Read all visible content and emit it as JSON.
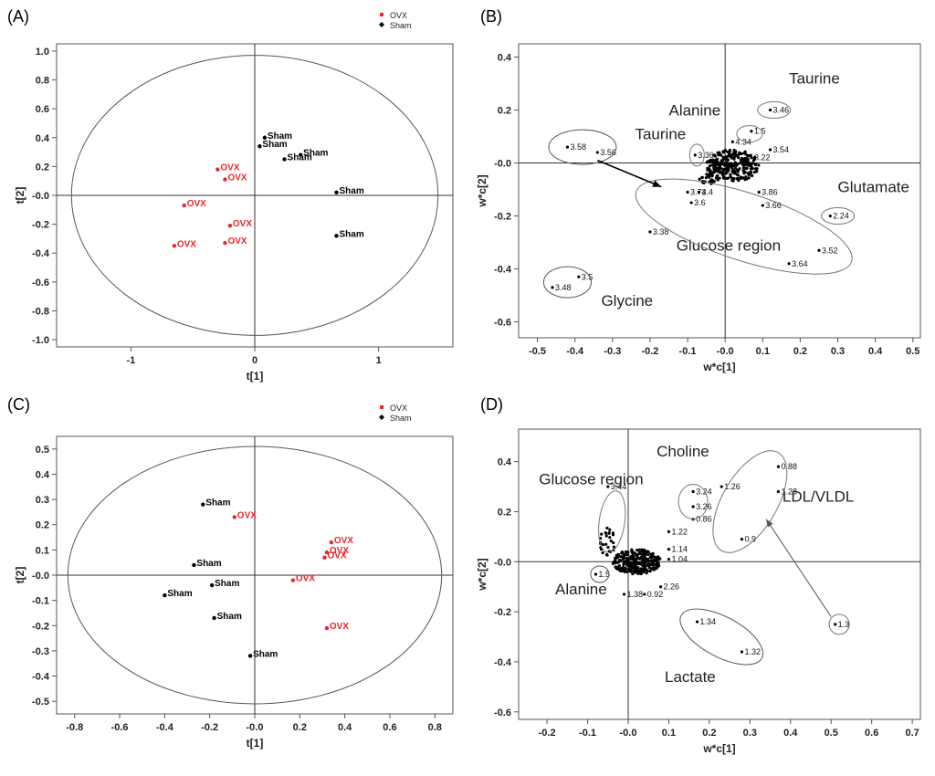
{
  "chart_data": [
    {
      "id": "A",
      "type": "scatter",
      "panel_label": "(A)",
      "xlabel": "t[1]",
      "ylabel": "t[2]",
      "xlim": [
        -1.6,
        1.6
      ],
      "ylim": [
        -1.05,
        1.05
      ],
      "xticks": [
        -1,
        0,
        1
      ],
      "yticks": [
        -1.0,
        -0.8,
        -0.6,
        -0.4,
        -0.2,
        0.0,
        0.2,
        0.4,
        0.6,
        0.8,
        1.0
      ],
      "ytick_labels": [
        "-1.0",
        "-0.8",
        "-0.6",
        "-0.4",
        "-0.2",
        "-0.0",
        "0.2",
        "0.4",
        "0.6",
        "0.8",
        "1.0"
      ],
      "ellipse": {
        "rx": 1.48,
        "ry": 0.97
      },
      "legend": [
        {
          "label": "OVX",
          "color": "#e8262b",
          "marker": "square"
        },
        {
          "label": "Sham",
          "color": "#000000",
          "marker": "diamond"
        }
      ],
      "series": [
        {
          "name": "OVX",
          "color": "#e8262b",
          "points": [
            {
              "x": -0.3,
              "y": 0.18,
              "label": "OVX"
            },
            {
              "x": -0.24,
              "y": 0.11,
              "label": "OVX"
            },
            {
              "x": -0.57,
              "y": -0.07,
              "label": "OVX"
            },
            {
              "x": -0.2,
              "y": -0.21,
              "label": "OVX"
            },
            {
              "x": -0.24,
              "y": -0.33,
              "label": "OVX"
            },
            {
              "x": -0.65,
              "y": -0.35,
              "label": "OVX"
            }
          ]
        },
        {
          "name": "Sham",
          "color": "#000000",
          "points": [
            {
              "x": 0.08,
              "y": 0.4,
              "label": "Sham"
            },
            {
              "x": 0.04,
              "y": 0.34,
              "label": "Sham"
            },
            {
              "x": 0.37,
              "y": 0.28,
              "label": "Sham"
            },
            {
              "x": 0.24,
              "y": 0.25,
              "label": "Sham"
            },
            {
              "x": 0.66,
              "y": 0.02,
              "label": "Sham"
            },
            {
              "x": 0.66,
              "y": -0.28,
              "label": "Sham"
            }
          ]
        }
      ]
    },
    {
      "id": "B",
      "type": "scatter",
      "panel_label": "(B)",
      "xlabel": "w*c[1]",
      "ylabel": "w*c[2]",
      "xlim": [
        -0.55,
        0.52
      ],
      "ylim": [
        -0.66,
        0.45
      ],
      "xticks": [
        -0.5,
        -0.4,
        -0.3,
        -0.2,
        -0.1,
        0.0,
        0.1,
        0.2,
        0.3,
        0.4,
        0.5
      ],
      "xtick_labels": [
        "-0.5",
        "-0.4",
        "-0.3",
        "-0.2",
        "-0.1",
        "-0.0",
        "0.1",
        "0.2",
        "0.3",
        "0.4",
        "0.5"
      ],
      "yticks": [
        -0.6,
        -0.4,
        -0.2,
        0.0,
        0.2,
        0.4
      ],
      "ytick_labels": [
        "-0.6",
        "-0.4",
        "-0.2",
        "-0.0",
        "0.2",
        "0.4"
      ],
      "labeled_points": [
        {
          "x": -0.42,
          "y": 0.06,
          "label": "3.58"
        },
        {
          "x": -0.34,
          "y": 0.04,
          "label": "3.56"
        },
        {
          "x": -0.08,
          "y": 0.03,
          "label": "3.36"
        },
        {
          "x": 0.12,
          "y": 0.2,
          "label": "3.46"
        },
        {
          "x": 0.07,
          "y": 0.12,
          "label": "1.5"
        },
        {
          "x": 0.02,
          "y": 0.08,
          "label": "4.34"
        },
        {
          "x": 0.12,
          "y": 0.05,
          "label": "3.54"
        },
        {
          "x": 0.07,
          "y": 0.02,
          "label": "3.22"
        },
        {
          "x": -0.1,
          "y": -0.11,
          "label": "3.74"
        },
        {
          "x": -0.07,
          "y": -0.11,
          "label": "3.4"
        },
        {
          "x": -0.09,
          "y": -0.15,
          "label": "3.6"
        },
        {
          "x": 0.09,
          "y": -0.11,
          "label": "3.86"
        },
        {
          "x": 0.1,
          "y": -0.16,
          "label": "3.66"
        },
        {
          "x": -0.2,
          "y": -0.26,
          "label": "3.38"
        },
        {
          "x": 0.25,
          "y": -0.33,
          "label": "3.52"
        },
        {
          "x": 0.17,
          "y": -0.38,
          "label": "3.64"
        },
        {
          "x": 0.28,
          "y": -0.2,
          "label": "2.24"
        },
        {
          "x": -0.39,
          "y": -0.43,
          "label": "3.5"
        },
        {
          "x": -0.46,
          "y": -0.47,
          "label": "3.48"
        }
      ],
      "annotations": [
        "Taurine",
        "Alanine",
        "Taurine",
        "Glutamate",
        "Glucose region",
        "Glycine"
      ]
    },
    {
      "id": "C",
      "type": "scatter",
      "panel_label": "(C)",
      "xlabel": "t[1]",
      "ylabel": "t[2]",
      "xlim": [
        -0.88,
        0.88
      ],
      "ylim": [
        -0.55,
        0.55
      ],
      "xticks": [
        -0.8,
        -0.6,
        -0.4,
        -0.2,
        0.0,
        0.2,
        0.4,
        0.6,
        0.8
      ],
      "xtick_labels": [
        "-0.8",
        "-0.6",
        "-0.4",
        "-0.2",
        "-0.0",
        "0.2",
        "0.4",
        "0.6",
        "0.8"
      ],
      "yticks": [
        -0.5,
        -0.4,
        -0.3,
        -0.2,
        -0.1,
        0.0,
        0.1,
        0.2,
        0.3,
        0.4,
        0.5
      ],
      "ytick_labels": [
        "-0.5",
        "-0.4",
        "-0.3",
        "-0.2",
        "-0.1",
        "-0.0",
        "0.1",
        "0.2",
        "0.3",
        "0.4",
        "0.5"
      ],
      "ellipse": {
        "rx": 0.83,
        "ry": 0.51
      },
      "legend": [
        {
          "label": "OVX",
          "color": "#e8262b",
          "marker": "square"
        },
        {
          "label": "Sham",
          "color": "#000000",
          "marker": "diamond"
        }
      ],
      "series": [
        {
          "name": "OVX",
          "color": "#e8262b",
          "points": [
            {
              "x": -0.09,
              "y": 0.23,
              "label": "OVX"
            },
            {
              "x": 0.34,
              "y": 0.13,
              "label": "OVX"
            },
            {
              "x": 0.32,
              "y": 0.09,
              "label": "OVX"
            },
            {
              "x": 0.31,
              "y": 0.07,
              "label": "OVX"
            },
            {
              "x": 0.17,
              "y": -0.02,
              "label": "OVX"
            },
            {
              "x": 0.32,
              "y": -0.21,
              "label": "OVX"
            }
          ]
        },
        {
          "name": "Sham",
          "color": "#000000",
          "points": [
            {
              "x": -0.23,
              "y": 0.28,
              "label": "Sham"
            },
            {
              "x": -0.27,
              "y": 0.04,
              "label": "Sham"
            },
            {
              "x": -0.19,
              "y": -0.04,
              "label": "Sham"
            },
            {
              "x": -0.4,
              "y": -0.08,
              "label": "Sham"
            },
            {
              "x": -0.18,
              "y": -0.17,
              "label": "Sham"
            },
            {
              "x": -0.02,
              "y": -0.32,
              "label": "Sham"
            }
          ]
        }
      ]
    },
    {
      "id": "D",
      "type": "scatter",
      "panel_label": "(D)",
      "xlabel": "w*c[1]",
      "ylabel": "w*c[2]",
      "xlim": [
        -0.27,
        0.72
      ],
      "ylim": [
        -0.63,
        0.53
      ],
      "xticks": [
        -0.2,
        -0.1,
        0.0,
        0.1,
        0.2,
        0.3,
        0.4,
        0.5,
        0.6,
        0.7
      ],
      "xtick_labels": [
        "-0.2",
        "-0.1",
        "-0.0",
        "0.1",
        "0.2",
        "0.3",
        "0.4",
        "0.5",
        "0.6",
        "0.7"
      ],
      "yticks": [
        -0.6,
        -0.4,
        -0.2,
        0.0,
        0.2,
        0.4
      ],
      "ytick_labels": [
        "-0.6",
        "-0.4",
        "-0.2",
        "-0.0",
        "0.2",
        "0.4"
      ],
      "labeled_points": [
        {
          "x": 0.37,
          "y": 0.38,
          "label": "0.88"
        },
        {
          "x": 0.37,
          "y": 0.28,
          "label": "1.28"
        },
        {
          "x": 0.23,
          "y": 0.3,
          "label": "1.26"
        },
        {
          "x": 0.16,
          "y": 0.28,
          "label": "3.24"
        },
        {
          "x": 0.16,
          "y": 0.22,
          "label": "3.26"
        },
        {
          "x": 0.16,
          "y": 0.17,
          "label": "0.86"
        },
        {
          "x": 0.28,
          "y": 0.09,
          "label": "0.9"
        },
        {
          "x": -0.05,
          "y": 0.3,
          "label": "3.44"
        },
        {
          "x": 0.1,
          "y": 0.12,
          "label": "1.22"
        },
        {
          "x": 0.1,
          "y": 0.05,
          "label": "1.14"
        },
        {
          "x": 0.1,
          "y": 0.01,
          "label": "1.04"
        },
        {
          "x": -0.08,
          "y": -0.05,
          "label": "1.5"
        },
        {
          "x": 0.08,
          "y": -0.1,
          "label": "2.26"
        },
        {
          "x": -0.01,
          "y": -0.13,
          "label": "1.38"
        },
        {
          "x": 0.04,
          "y": -0.13,
          "label": "0.92"
        },
        {
          "x": 0.17,
          "y": -0.24,
          "label": "1.34"
        },
        {
          "x": 0.28,
          "y": -0.36,
          "label": "1.32"
        },
        {
          "x": 0.51,
          "y": -0.25,
          "label": "1.3"
        }
      ],
      "annotations": [
        "Choline",
        "Glucose region",
        "LDL/VLDL",
        "Alanine",
        "Lactate"
      ]
    }
  ]
}
